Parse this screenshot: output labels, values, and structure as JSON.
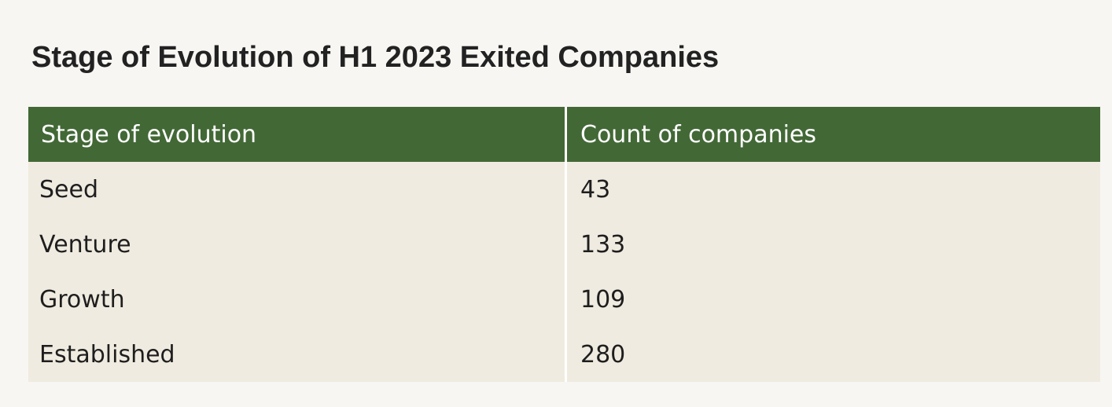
{
  "title": "Stage of Evolution of H1 2023 Exited Companies",
  "table": {
    "header": [
      "Stage of evolution",
      "Count of companies"
    ],
    "rows": [
      [
        "Seed",
        43
      ],
      [
        "Venture",
        133
      ],
      [
        "Growth",
        109
      ],
      [
        "Established",
        280
      ]
    ]
  }
}
